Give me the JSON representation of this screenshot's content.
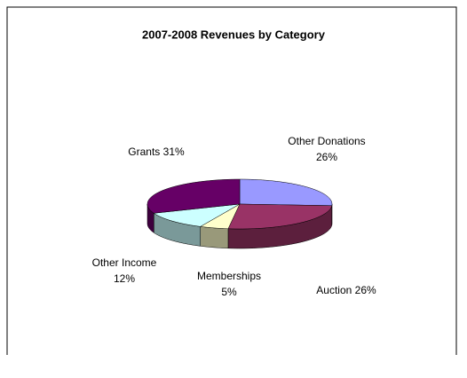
{
  "chart_data": {
    "type": "pie",
    "title": "2007-2008 Revenues by Category",
    "categories": [
      "Other Donations",
      "Auction",
      "Memberships",
      "Other Income",
      "Grants"
    ],
    "values": [
      26,
      26,
      5,
      12,
      31
    ],
    "value_labels": [
      "26%",
      "26%",
      "5%",
      "12%",
      "31%"
    ],
    "colors": [
      "#9999ff",
      "#993366",
      "#ffffcc",
      "#ccffff",
      "#660066"
    ]
  }
}
